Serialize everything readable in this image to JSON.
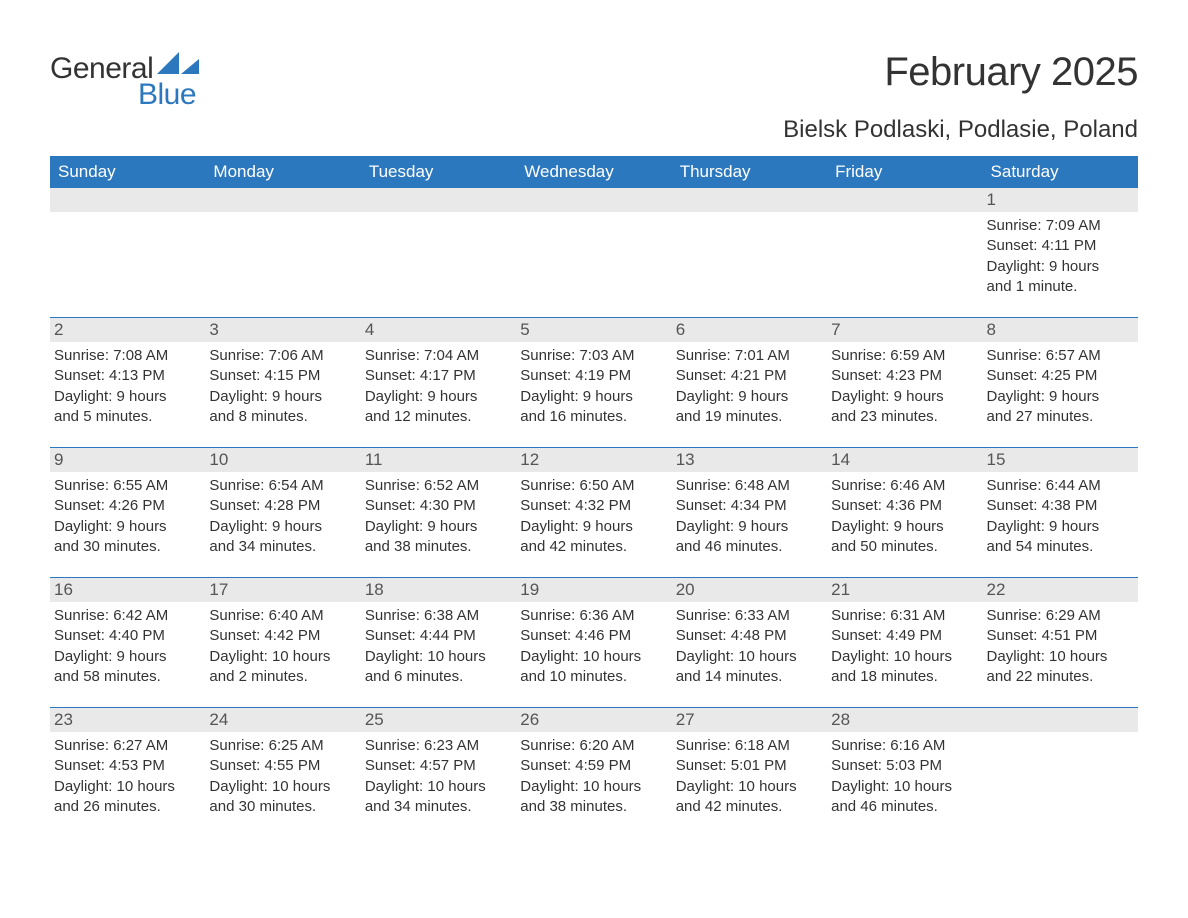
{
  "logo": {
    "word1": "General",
    "word2": "Blue"
  },
  "colors": {
    "accent": "#2c78bf",
    "header_bg": "#2c78bf",
    "header_text": "#ffffff",
    "daynum_bg": "#e9e9e9",
    "text": "#333333",
    "background": "#ffffff"
  },
  "fonts": {
    "title_size_pt": 40,
    "location_size_pt": 24,
    "dow_size_pt": 17,
    "daynum_size_pt": 17,
    "body_size_pt": 15
  },
  "title": "February 2025",
  "location": "Bielsk Podlaski, Podlasie, Poland",
  "days_of_week": [
    "Sunday",
    "Monday",
    "Tuesday",
    "Wednesday",
    "Thursday",
    "Friday",
    "Saturday"
  ],
  "weeks": [
    [
      {
        "empty": true
      },
      {
        "empty": true
      },
      {
        "empty": true
      },
      {
        "empty": true
      },
      {
        "empty": true
      },
      {
        "empty": true
      },
      {
        "n": "1",
        "sunrise": "Sunrise: 7:09 AM",
        "sunset": "Sunset: 4:11 PM",
        "day1": "Daylight: 9 hours",
        "day2": "and 1 minute."
      }
    ],
    [
      {
        "n": "2",
        "sunrise": "Sunrise: 7:08 AM",
        "sunset": "Sunset: 4:13 PM",
        "day1": "Daylight: 9 hours",
        "day2": "and 5 minutes."
      },
      {
        "n": "3",
        "sunrise": "Sunrise: 7:06 AM",
        "sunset": "Sunset: 4:15 PM",
        "day1": "Daylight: 9 hours",
        "day2": "and 8 minutes."
      },
      {
        "n": "4",
        "sunrise": "Sunrise: 7:04 AM",
        "sunset": "Sunset: 4:17 PM",
        "day1": "Daylight: 9 hours",
        "day2": "and 12 minutes."
      },
      {
        "n": "5",
        "sunrise": "Sunrise: 7:03 AM",
        "sunset": "Sunset: 4:19 PM",
        "day1": "Daylight: 9 hours",
        "day2": "and 16 minutes."
      },
      {
        "n": "6",
        "sunrise": "Sunrise: 7:01 AM",
        "sunset": "Sunset: 4:21 PM",
        "day1": "Daylight: 9 hours",
        "day2": "and 19 minutes."
      },
      {
        "n": "7",
        "sunrise": "Sunrise: 6:59 AM",
        "sunset": "Sunset: 4:23 PM",
        "day1": "Daylight: 9 hours",
        "day2": "and 23 minutes."
      },
      {
        "n": "8",
        "sunrise": "Sunrise: 6:57 AM",
        "sunset": "Sunset: 4:25 PM",
        "day1": "Daylight: 9 hours",
        "day2": "and 27 minutes."
      }
    ],
    [
      {
        "n": "9",
        "sunrise": "Sunrise: 6:55 AM",
        "sunset": "Sunset: 4:26 PM",
        "day1": "Daylight: 9 hours",
        "day2": "and 30 minutes."
      },
      {
        "n": "10",
        "sunrise": "Sunrise: 6:54 AM",
        "sunset": "Sunset: 4:28 PM",
        "day1": "Daylight: 9 hours",
        "day2": "and 34 minutes."
      },
      {
        "n": "11",
        "sunrise": "Sunrise: 6:52 AM",
        "sunset": "Sunset: 4:30 PM",
        "day1": "Daylight: 9 hours",
        "day2": "and 38 minutes."
      },
      {
        "n": "12",
        "sunrise": "Sunrise: 6:50 AM",
        "sunset": "Sunset: 4:32 PM",
        "day1": "Daylight: 9 hours",
        "day2": "and 42 minutes."
      },
      {
        "n": "13",
        "sunrise": "Sunrise: 6:48 AM",
        "sunset": "Sunset: 4:34 PM",
        "day1": "Daylight: 9 hours",
        "day2": "and 46 minutes."
      },
      {
        "n": "14",
        "sunrise": "Sunrise: 6:46 AM",
        "sunset": "Sunset: 4:36 PM",
        "day1": "Daylight: 9 hours",
        "day2": "and 50 minutes."
      },
      {
        "n": "15",
        "sunrise": "Sunrise: 6:44 AM",
        "sunset": "Sunset: 4:38 PM",
        "day1": "Daylight: 9 hours",
        "day2": "and 54 minutes."
      }
    ],
    [
      {
        "n": "16",
        "sunrise": "Sunrise: 6:42 AM",
        "sunset": "Sunset: 4:40 PM",
        "day1": "Daylight: 9 hours",
        "day2": "and 58 minutes."
      },
      {
        "n": "17",
        "sunrise": "Sunrise: 6:40 AM",
        "sunset": "Sunset: 4:42 PM",
        "day1": "Daylight: 10 hours",
        "day2": "and 2 minutes."
      },
      {
        "n": "18",
        "sunrise": "Sunrise: 6:38 AM",
        "sunset": "Sunset: 4:44 PM",
        "day1": "Daylight: 10 hours",
        "day2": "and 6 minutes."
      },
      {
        "n": "19",
        "sunrise": "Sunrise: 6:36 AM",
        "sunset": "Sunset: 4:46 PM",
        "day1": "Daylight: 10 hours",
        "day2": "and 10 minutes."
      },
      {
        "n": "20",
        "sunrise": "Sunrise: 6:33 AM",
        "sunset": "Sunset: 4:48 PM",
        "day1": "Daylight: 10 hours",
        "day2": "and 14 minutes."
      },
      {
        "n": "21",
        "sunrise": "Sunrise: 6:31 AM",
        "sunset": "Sunset: 4:49 PM",
        "day1": "Daylight: 10 hours",
        "day2": "and 18 minutes."
      },
      {
        "n": "22",
        "sunrise": "Sunrise: 6:29 AM",
        "sunset": "Sunset: 4:51 PM",
        "day1": "Daylight: 10 hours",
        "day2": "and 22 minutes."
      }
    ],
    [
      {
        "n": "23",
        "sunrise": "Sunrise: 6:27 AM",
        "sunset": "Sunset: 4:53 PM",
        "day1": "Daylight: 10 hours",
        "day2": "and 26 minutes."
      },
      {
        "n": "24",
        "sunrise": "Sunrise: 6:25 AM",
        "sunset": "Sunset: 4:55 PM",
        "day1": "Daylight: 10 hours",
        "day2": "and 30 minutes."
      },
      {
        "n": "25",
        "sunrise": "Sunrise: 6:23 AM",
        "sunset": "Sunset: 4:57 PM",
        "day1": "Daylight: 10 hours",
        "day2": "and 34 minutes."
      },
      {
        "n": "26",
        "sunrise": "Sunrise: 6:20 AM",
        "sunset": "Sunset: 4:59 PM",
        "day1": "Daylight: 10 hours",
        "day2": "and 38 minutes."
      },
      {
        "n": "27",
        "sunrise": "Sunrise: 6:18 AM",
        "sunset": "Sunset: 5:01 PM",
        "day1": "Daylight: 10 hours",
        "day2": "and 42 minutes."
      },
      {
        "n": "28",
        "sunrise": "Sunrise: 6:16 AM",
        "sunset": "Sunset: 5:03 PM",
        "day1": "Daylight: 10 hours",
        "day2": "and 46 minutes."
      },
      {
        "empty": true
      }
    ]
  ]
}
